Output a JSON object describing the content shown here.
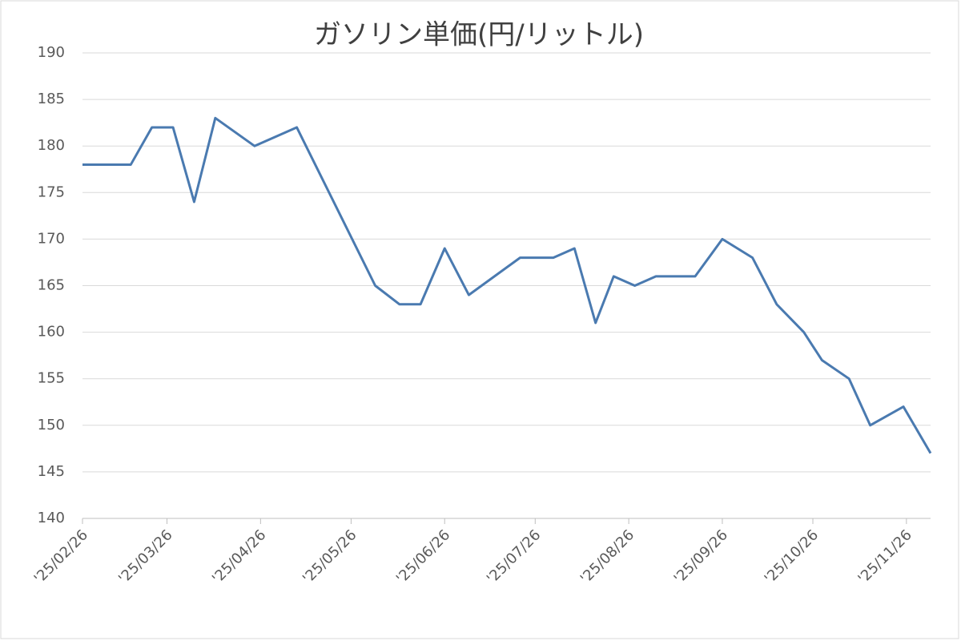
{
  "chart_data": {
    "type": "line",
    "title": "ガソリン単価(円/リットル)",
    "x": [
      "2025-02-26",
      "2025-03-14",
      "2025-03-21",
      "2025-03-28",
      "2025-04-04",
      "2025-04-11",
      "2025-04-24",
      "2025-05-08",
      "2025-06-03",
      "2025-06-11",
      "2025-06-18",
      "2025-06-26",
      "2025-07-04",
      "2025-07-21",
      "2025-08-01",
      "2025-08-08",
      "2025-08-15",
      "2025-08-21",
      "2025-08-28",
      "2025-09-04",
      "2025-09-17",
      "2025-09-26",
      "2025-10-06",
      "2025-10-14",
      "2025-10-23",
      "2025-10-29",
      "2025-11-07",
      "2025-11-14",
      "2025-11-25",
      "2025-12-04"
    ],
    "series": [
      {
        "name": "ガソリン単価",
        "color": "#4a7ab0",
        "values": [
          178,
          178,
          182,
          182,
          174,
          183,
          180,
          182,
          165,
          163,
          163,
          169,
          164,
          168,
          168,
          169,
          161,
          166,
          165,
          166,
          166,
          170,
          168,
          163,
          160,
          157,
          155,
          150,
          152,
          147
        ]
      }
    ],
    "xlim": [
      "2025-02-26",
      "2025-12-04"
    ],
    "xticks": [
      {
        "value": "2025-02-26",
        "label": "'25/02/26"
      },
      {
        "value": "2025-03-26",
        "label": "'25/03/26"
      },
      {
        "value": "2025-04-26",
        "label": "'25/04/26"
      },
      {
        "value": "2025-05-26",
        "label": "'25/05/26"
      },
      {
        "value": "2025-06-26",
        "label": "'25/06/26"
      },
      {
        "value": "2025-07-26",
        "label": "'25/07/26"
      },
      {
        "value": "2025-08-26",
        "label": "'25/08/26"
      },
      {
        "value": "2025-09-26",
        "label": "'25/09/26"
      },
      {
        "value": "2025-10-26",
        "label": "'25/10/26"
      },
      {
        "value": "2025-11-26",
        "label": "'25/11/26"
      }
    ],
    "ylim": [
      140,
      190
    ],
    "yticks": [
      140,
      145,
      150,
      155,
      160,
      165,
      170,
      175,
      180,
      185,
      190
    ],
    "grid": true
  }
}
